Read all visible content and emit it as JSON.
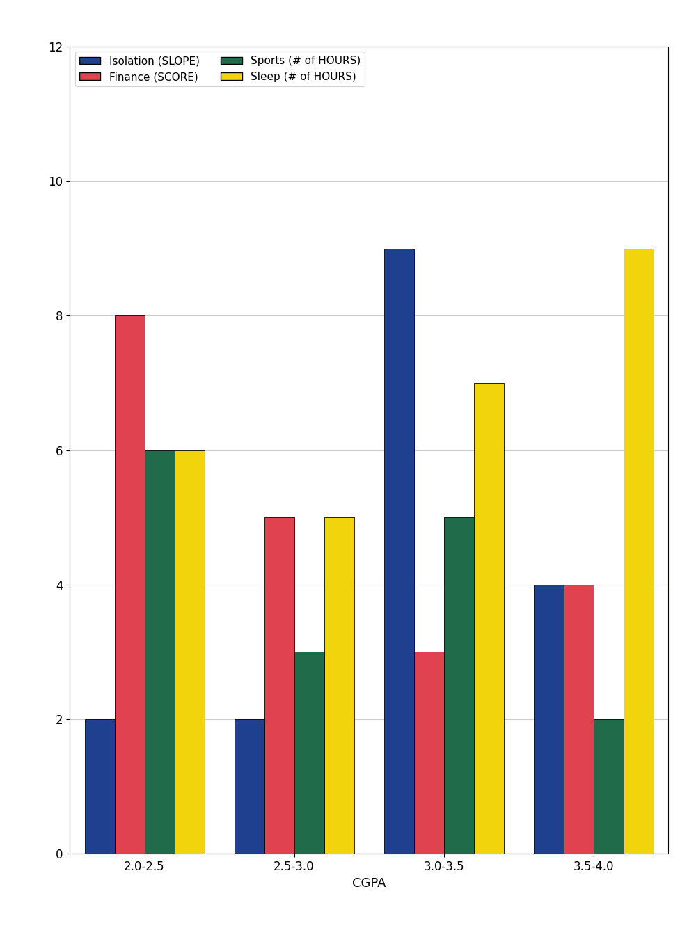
{
  "chart_data": {
    "type": "bar",
    "x_label": "CGPA",
    "categories": [
      "2.0-2.5",
      "2.5-3.0",
      "3.0-3.5",
      "3.5-4.0"
    ],
    "series": [
      {
        "name": "Isolation (SLOPE)",
        "color": "#1f3f8f",
        "values": [
          2,
          2,
          9,
          4
        ]
      },
      {
        "name": "Finance (SCORE)",
        "color": "#e0434f",
        "values": [
          8,
          5,
          3,
          4
        ]
      },
      {
        "name": "Sports (# of HOURS)",
        "color": "#1f6b4a",
        "values": [
          6,
          3,
          5,
          2
        ]
      },
      {
        "name": "Sleep (# of HOURS)",
        "color": "#f2d40c",
        "values": [
          6,
          5,
          7,
          9
        ]
      }
    ],
    "ylim": [
      0,
      12
    ],
    "yticks": [
      0,
      2,
      4,
      6,
      8,
      10,
      12
    ],
    "grid": true,
    "legend": "upper left"
  }
}
